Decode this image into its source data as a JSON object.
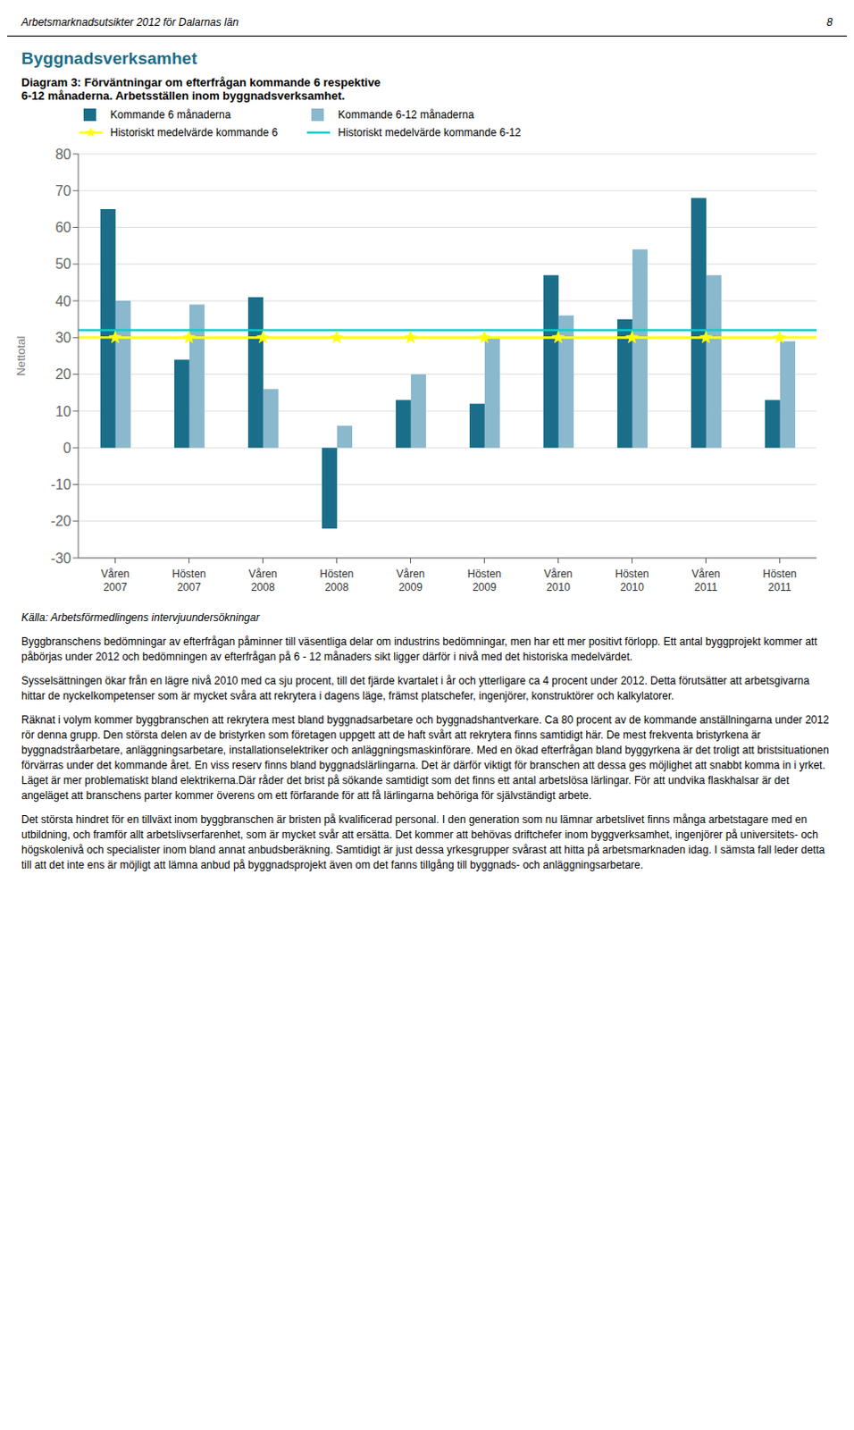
{
  "chart_data": {
    "type": "bar",
    "header": "Arbetsmarknadsutsikter 2012 för Dalarnas län",
    "page_number": "8",
    "heading": "Byggnadsverksamhet",
    "title": "Diagram 3: Förväntningar om efterfrågan kommande 6 respektive\n6-12 månaderna. Arbetsställen inom byggnadsverksamhet.",
    "ylabel": "Nettotal",
    "categories": [
      "Våren\n2007",
      "Hösten\n2007",
      "Våren\n2008",
      "Hösten\n2008",
      "Våren\n2009",
      "Hösten\n2009",
      "Våren\n2010",
      "Hösten\n2010",
      "Våren\n2011",
      "Hösten\n2011"
    ],
    "series": [
      {
        "name": "Kommande 6 månaderna",
        "color": "#1a6e8a",
        "values": [
          65,
          24,
          41,
          -22,
          13,
          12,
          47,
          35,
          68,
          13
        ]
      },
      {
        "name": "Kommande 6-12 månaderna",
        "color": "#8ab8cc",
        "values": [
          40,
          39,
          16,
          6,
          20,
          30,
          36,
          54,
          47,
          29
        ]
      },
      {
        "name": "Historiskt medelvärde kommande 6",
        "type": "line",
        "color": "#ffff00",
        "marker": "star",
        "value": 30
      },
      {
        "name": "Historiskt medelvärde kommande 6-12",
        "type": "line",
        "color": "#00cccc",
        "value": 32
      }
    ],
    "ylim": [
      -30,
      80
    ],
    "yticks": [
      -30,
      -20,
      -10,
      0,
      10,
      20,
      30,
      40,
      50,
      60,
      70,
      80
    ],
    "grid": true,
    "legend": "top",
    "source": "Källa: Arbetsförmedlingens intervjuundersökningar",
    "body_text": "Byggbranschens bedömningar av efterfrågan påminner till väsentliga delar om industrins bedömningar, men har ett mer positivt förlopp. Ett antal byggprojekt kommer att påbörjas under 2012 och bedömningen av efterfrågan på 6 - 12 månaders sikt ligger därför i nivå med det historiska medelvärdet.\n\nSysselsättningen ökar från en lägre nivå 2010 med ca sju procent, till det fjärde kvartalet i år och ytterligare ca 4 procent under 2012. Detta förutsätter att arbetsgivarna hittar de nyckelkompetenser som är mycket svåra att rekrytera i dagens läge, främst platschefer, ingenjörer, konstruktörer och kalkylatorer.\n\nRäknat i volym kommer byggbranschen att rekrytera mest bland byggnadsarbetare och byggnadshantverkare. Ca 80 procent av de kommande anställningarna under 2012 rör denna grupp. Den största delen av de bristyrken som företagen uppgett att de haft svårt att rekrytera finns samtidigt här. De mest frekventa bristyrkena är byggnadstråarbetare, anläggningsarbetare, installationselektriker och anläggningsmaskinförare. Med en ökad efterfrågan bland byggyrkena är det troligt att bristsituationen förvärras under det kommande året. En viss reserv finns bland byggnadslärlingarna. Det är därför viktigt för branschen att dessa ges möjlighet att snabbt komma in i yrket. Läget är mer problematiskt bland elektrikerna.Där råder det brist på sökande samtidigt som det finns ett antal arbetslösa lärlingar. För att undvika flaskhalsar är det angeläget att branschens parter kommer överens om ett förfarande för att få lärlingarna behöriga för självständigt arbete.\n\nDet största hindret för en tillväxt inom byggbranschen är bristen på kvalificerad personal. I den generation som nu lämnar arbetslivet finns många arbetstagare med en utbildning, och framför allt arbetslivserfarenhet, som är mycket svår att ersätta. Det kommer att behövas driftchefer inom byggverksamhet, ingenjörer på universitets- och högskolenivå och specialister inom bland annat anbudsberäkning. Samtidigt är just dessa yrkesgrupper svårast att hitta på arbetsmarknaden idag. I sämsta fall leder detta till att det inte ens är möjligt att lämna anbud på byggnadsprojekt även om det fanns tillgång till byggnads- och anläggningsarbetare."
  }
}
